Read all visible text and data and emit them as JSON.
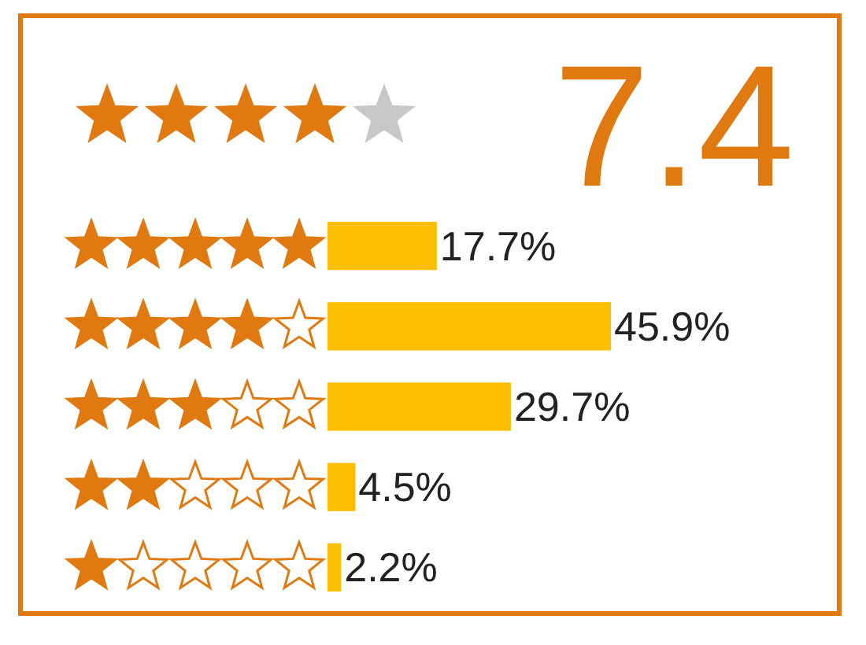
{
  "chart_data": {
    "type": "bar",
    "orientation": "horizontal",
    "title": "7.4",
    "categories": [
      null,
      null,
      null,
      null,
      null
    ],
    "values": [
      17.7,
      45.9,
      29.7,
      4.5,
      2.2
    ],
    "value_labels": [
      "17.7%",
      "45.9%",
      "29.7%",
      "4.5%",
      "2.2%"
    ],
    "color": "#fbbf00"
  }
}
